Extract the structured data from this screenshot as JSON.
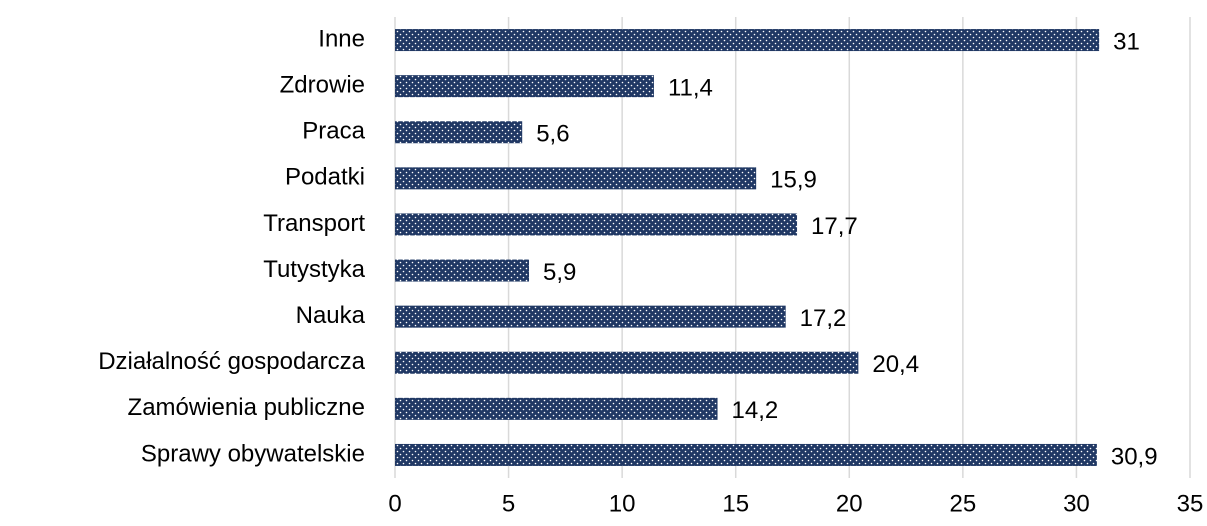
{
  "chart_data": {
    "type": "bar",
    "orientation": "horizontal",
    "categories": [
      "Inne",
      "Zdrowie",
      "Praca",
      "Podatki",
      "Transport",
      "Tutystyka",
      "Nauka",
      "Działalność gospodarcza",
      "Zamówienia publiczne",
      "Sprawy obywatelskie"
    ],
    "values": [
      31,
      11.4,
      5.6,
      15.9,
      17.7,
      5.9,
      17.2,
      20.4,
      14.2,
      30.9
    ],
    "value_labels": [
      "31",
      "11,4",
      "5,6",
      "15,9",
      "17,7",
      "5,9",
      "17,2",
      "20,4",
      "14,2",
      "30,9"
    ],
    "color": "#203864",
    "xlim": [
      0,
      35
    ],
    "xticks": [
      0,
      5,
      10,
      15,
      20,
      25,
      30,
      35
    ],
    "grid": true
  }
}
